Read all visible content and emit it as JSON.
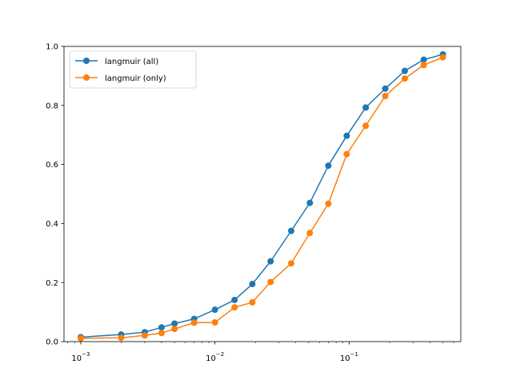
{
  "chart_data": {
    "type": "line",
    "xscale": "log",
    "xlim": [
      0.00075,
      0.68
    ],
    "ylim": [
      0,
      1.0
    ],
    "grid": false,
    "legend_position": "top-left",
    "x_major_ticks": [
      0.001,
      0.01,
      0.1
    ],
    "x_tick_labels": [
      "10",
      "10",
      "10"
    ],
    "x_tick_exponents": [
      "−3",
      "−2",
      "−1"
    ],
    "y_ticks": [
      0,
      0.2,
      0.4,
      0.6,
      0.8,
      1.0
    ],
    "y_tick_labels": [
      "0.0",
      "0.2",
      "0.4",
      "0.6",
      "0.8",
      "1.0"
    ],
    "series": [
      {
        "name": "langmuir (all)",
        "color": "#1f77b4",
        "x": [
          0.001,
          0.002,
          0.003,
          0.004,
          0.005,
          0.007,
          0.01,
          0.014,
          0.019,
          0.026,
          0.037,
          0.051,
          0.07,
          0.096,
          0.133,
          0.186,
          0.26,
          0.36,
          0.5
        ],
        "y": [
          0.015,
          0.024,
          0.032,
          0.048,
          0.061,
          0.077,
          0.108,
          0.141,
          0.195,
          0.272,
          0.375,
          0.47,
          0.596,
          0.697,
          0.793,
          0.857,
          0.917,
          0.955,
          0.973
        ]
      },
      {
        "name": "langmuir (only)",
        "color": "#ff7f0e",
        "x": [
          0.001,
          0.002,
          0.003,
          0.004,
          0.005,
          0.007,
          0.01,
          0.014,
          0.019,
          0.026,
          0.037,
          0.051,
          0.07,
          0.096,
          0.133,
          0.186,
          0.26,
          0.36,
          0.5
        ],
        "y": [
          0.011,
          0.013,
          0.021,
          0.029,
          0.043,
          0.064,
          0.065,
          0.116,
          0.133,
          0.202,
          0.265,
          0.368,
          0.467,
          0.635,
          0.731,
          0.832,
          0.891,
          0.937,
          0.963
        ]
      }
    ]
  }
}
